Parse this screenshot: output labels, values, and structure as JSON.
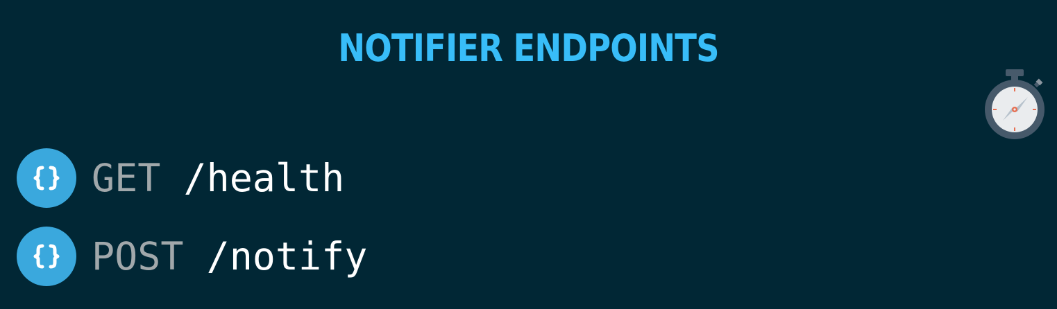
{
  "slide": {
    "title": "NOTIFIER ENDPOINTS",
    "timer_icon": "stopwatch-icon"
  },
  "endpoints": [
    {
      "method": "GET",
      "path": "/health",
      "icon": "json-braces-icon"
    },
    {
      "method": "POST",
      "path": "/notify",
      "icon": "json-braces-icon"
    }
  ],
  "colors": {
    "background": "#012735",
    "title": "#38bdf8",
    "badge": "#3aa8dd",
    "method": "#a1a8ab",
    "path": "#ffffff"
  }
}
